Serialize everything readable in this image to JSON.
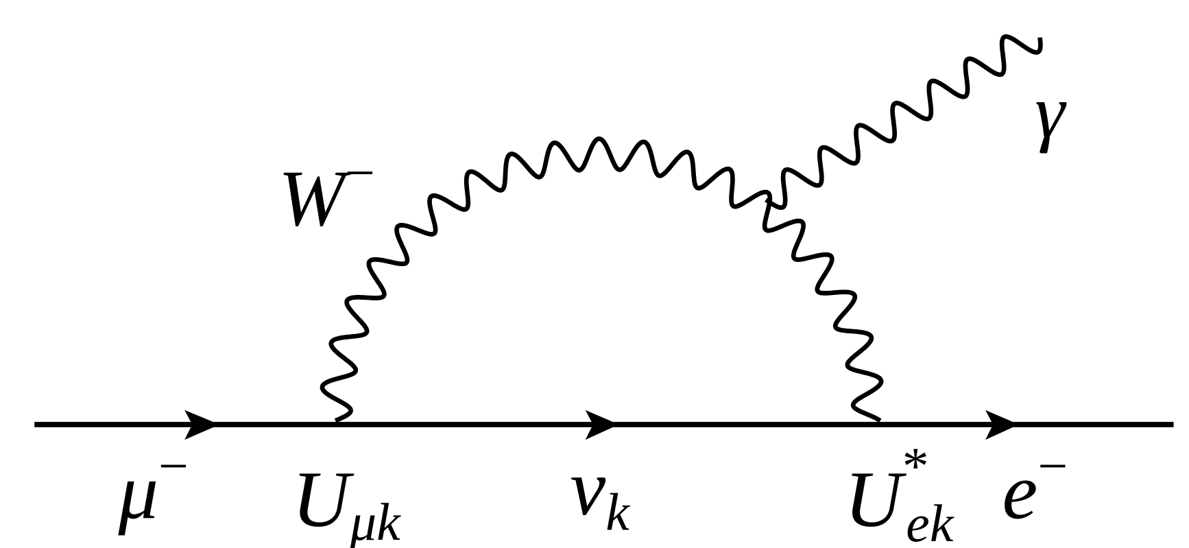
{
  "diagram": {
    "type": "feynman",
    "colors": {
      "line": "#000000",
      "background": "#ffffff"
    },
    "labels": {
      "boson": "W",
      "boson_charge": "−",
      "photon": "γ",
      "muon": "μ",
      "muon_charge": "−",
      "vertex1": "U",
      "vertex1_sub": "μk",
      "neutrino": "ν",
      "neutrino_sub": "k",
      "vertex2": "U",
      "vertex2_sup": "*",
      "vertex2_sub": "ek",
      "electron": "e",
      "electron_charge": "−"
    }
  }
}
